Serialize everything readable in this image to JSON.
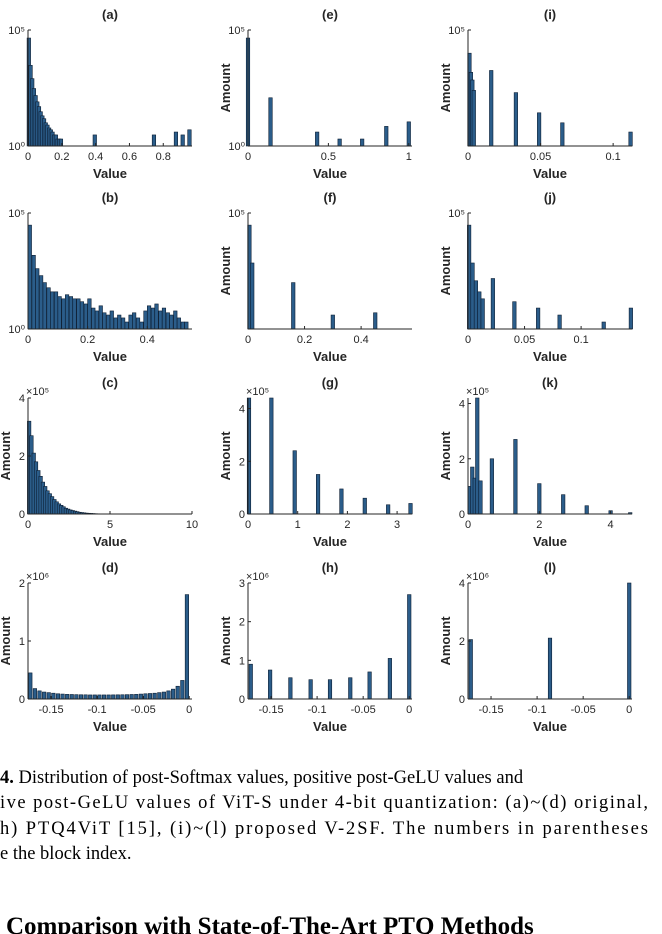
{
  "chart_data": [
    {
      "type": "bar",
      "title": "(a)",
      "xlabel": "Value",
      "color": "#2b5d8a",
      "log": true,
      "x": [
        0.005,
        0.015,
        0.025,
        0.035,
        0.045,
        0.055,
        0.065,
        0.075,
        0.085,
        0.095,
        0.105,
        0.115,
        0.125,
        0.135,
        0.145,
        0.155,
        0.165,
        0.175,
        0.185,
        0.195,
        0.395,
        0.745,
        0.875,
        0.915,
        0.955
      ],
      "values": [
        45000,
        3000,
        800,
        300,
        150,
        80,
        50,
        30,
        20,
        15,
        10,
        8,
        6,
        5,
        4,
        3,
        3,
        2,
        2,
        2,
        3,
        3,
        4,
        3,
        5
      ],
      "xlim": [
        0,
        0.97
      ],
      "xticks": [
        0,
        0.2,
        0.4,
        0.6,
        0.8
      ],
      "ylim": [
        1,
        100000
      ],
      "yticks": [
        {
          "value": 1,
          "label": "10⁰"
        },
        {
          "value": 100000,
          "label": "10⁵"
        }
      ]
    },
    {
      "type": "bar",
      "title": "(e)",
      "xlabel": "Value",
      "ylabel": "Amount",
      "color": "#2b5d8a",
      "log": true,
      "x": [
        0,
        0.14,
        0.43,
        0.57,
        0.71,
        0.86,
        1.0
      ],
      "values": [
        45000,
        120,
        4,
        2,
        2,
        7,
        11
      ],
      "xlim": [
        0,
        1.02
      ],
      "xticks": [
        0,
        0.5,
        1
      ],
      "ylim": [
        1,
        100000
      ],
      "yticks": [
        {
          "value": 1,
          "label": "10⁰"
        },
        {
          "value": 100000,
          "label": "10⁵"
        }
      ]
    },
    {
      "type": "bar",
      "title": "(i)",
      "xlabel": "Value",
      "ylabel": "Amount",
      "color": "#2b5d8a",
      "log": true,
      "x": [
        0.001,
        0.002,
        0.003,
        0.004,
        0.016,
        0.033,
        0.049,
        0.065,
        0.112
      ],
      "values": [
        10000,
        1500,
        700,
        250,
        1800,
        200,
        27,
        10,
        4
      ],
      "xlim": [
        0,
        0.113
      ],
      "xticks": [
        0,
        0.05,
        0.1
      ],
      "ylim": [
        1,
        100000
      ],
      "yticks": [
        {
          "value": 100000,
          "label": "10⁵"
        }
      ]
    },
    {
      "type": "bar",
      "title": "(b)",
      "xlabel": "Value",
      "color": "#2b5d8a",
      "log": true,
      "x": [
        0.006,
        0.019,
        0.031,
        0.044,
        0.056,
        0.069,
        0.081,
        0.094,
        0.106,
        0.119,
        0.131,
        0.144,
        0.156,
        0.169,
        0.181,
        0.194,
        0.206,
        0.219,
        0.231,
        0.244,
        0.256,
        0.269,
        0.281,
        0.294,
        0.306,
        0.319,
        0.331,
        0.344,
        0.356,
        0.369,
        0.381,
        0.394,
        0.406,
        0.419,
        0.431,
        0.444,
        0.456,
        0.469,
        0.481,
        0.494,
        0.506,
        0.519,
        0.531
      ],
      "values": [
        30000,
        1500,
        400,
        200,
        100,
        60,
        40,
        40,
        25,
        20,
        30,
        25,
        20,
        20,
        15,
        12,
        20,
        8,
        6,
        10,
        5,
        4,
        6,
        3,
        4,
        3,
        2,
        4,
        5,
        3,
        2,
        6,
        10,
        8,
        12,
        6,
        8,
        5,
        4,
        6,
        3,
        2,
        2
      ],
      "xlim": [
        0,
        0.55
      ],
      "xticks": [
        0,
        0.2,
        0.4
      ],
      "ylim": [
        1,
        100000
      ],
      "yticks": [
        {
          "value": 1,
          "label": "10⁰"
        },
        {
          "value": 100000,
          "label": "10⁵"
        }
      ]
    },
    {
      "type": "bar",
      "title": "(f)",
      "xlabel": "Value",
      "ylabel": "Amount",
      "color": "#2b5d8a",
      "log": true,
      "x": [
        0.005,
        0.015,
        0.16,
        0.3,
        0.45
      ],
      "values": [
        30000,
        700,
        100,
        4,
        5
      ],
      "xlim": [
        0,
        0.58
      ],
      "xticks": [
        0,
        0.2,
        0.4
      ],
      "ylim": [
        1,
        100000
      ],
      "yticks": [
        {
          "value": 100000,
          "label": "10⁵"
        }
      ]
    },
    {
      "type": "bar",
      "title": "(j)",
      "xlabel": "Value",
      "ylabel": "Amount",
      "color": "#2b5d8a",
      "log": true,
      "x": [
        0.001,
        0.004,
        0.007,
        0.01,
        0.013,
        0.022,
        0.041,
        0.062,
        0.081,
        0.12,
        0.144
      ],
      "values": [
        30000,
        700,
        120,
        40,
        20,
        150,
        15,
        8,
        4,
        2,
        8
      ],
      "xlim": [
        0,
        0.145
      ],
      "xticks": [
        0,
        0.05,
        0.1
      ],
      "ylim": [
        1,
        100000
      ],
      "yticks": [
        {
          "value": 100000,
          "label": "10⁵"
        }
      ]
    },
    {
      "type": "bar",
      "title": "(c)",
      "xlabel": "Value",
      "ylabel": "Amount",
      "y_multiplier": "×10⁵",
      "color": "#2b5d8a",
      "log": false,
      "x": [
        0.07,
        0.21,
        0.35,
        0.49,
        0.63,
        0.77,
        0.91,
        1.05,
        1.19,
        1.33,
        1.47,
        1.61,
        1.75,
        1.89,
        2.03,
        2.17,
        2.31,
        2.45,
        2.59,
        2.73,
        2.87,
        3.01,
        3.15,
        3.29,
        3.43,
        3.57,
        3.71,
        3.85,
        3.99,
        4.13,
        4.27,
        4.41
      ],
      "values": [
        3.2,
        2.7,
        2.1,
        1.8,
        1.5,
        1.3,
        1.1,
        0.95,
        0.8,
        0.7,
        0.6,
        0.5,
        0.42,
        0.35,
        0.3,
        0.25,
        0.2,
        0.17,
        0.14,
        0.12,
        0.1,
        0.08,
        0.06,
        0.05,
        0.04,
        0.03,
        0.025,
        0.02,
        0.015,
        0.01,
        0.008,
        0.005
      ],
      "xlim": [
        0,
        10
      ],
      "xticks": [
        0,
        5,
        10
      ],
      "ylim": [
        0,
        4
      ],
      "yticks": [
        0,
        2,
        4
      ]
    },
    {
      "type": "bar",
      "title": "(g)",
      "xlabel": "Value",
      "ylabel": "Amount",
      "y_multiplier": "×10⁵",
      "color": "#2b5d8a",
      "log": false,
      "x": [
        0.02,
        0.47,
        0.94,
        1.41,
        1.88,
        2.35,
        2.82,
        3.27
      ],
      "values": [
        4.4,
        4.4,
        2.4,
        1.5,
        0.95,
        0.6,
        0.35,
        0.4
      ],
      "xlim": [
        0,
        3.3
      ],
      "xticks": [
        0,
        1,
        2,
        3
      ],
      "ylim": [
        0,
        4.4
      ],
      "yticks": [
        0,
        2,
        4
      ]
    },
    {
      "type": "bar",
      "title": "(k)",
      "xlabel": "Value",
      "ylabel": "Amount",
      "y_multiplier": "×10⁵",
      "color": "#2b5d8a",
      "log": false,
      "x": [
        0.05,
        0.12,
        0.19,
        0.26,
        0.35,
        0.67,
        1.33,
        2.0,
        2.67,
        3.33,
        4.0,
        4.55
      ],
      "values": [
        1.0,
        1.7,
        1.3,
        4.2,
        1.2,
        2.0,
        2.7,
        1.1,
        0.7,
        0.3,
        0.12,
        0.05
      ],
      "xlim": [
        0,
        4.6
      ],
      "xticks": [
        0,
        2,
        4
      ],
      "ylim": [
        0,
        4.2
      ],
      "yticks": [
        0,
        2,
        4
      ]
    },
    {
      "type": "bar",
      "title": "(d)",
      "xlabel": "Value",
      "ylabel": "Amount",
      "y_multiplier": "×10⁶",
      "color": "#2b5d8a",
      "log": false,
      "x": [
        -0.1725,
        -0.1675,
        -0.1625,
        -0.1575,
        -0.1525,
        -0.1475,
        -0.1425,
        -0.1375,
        -0.1325,
        -0.1275,
        -0.1225,
        -0.1175,
        -0.1125,
        -0.1075,
        -0.1025,
        -0.0975,
        -0.0925,
        -0.0875,
        -0.0825,
        -0.0775,
        -0.0725,
        -0.0675,
        -0.0625,
        -0.0575,
        -0.0525,
        -0.0475,
        -0.0425,
        -0.0375,
        -0.0325,
        -0.0275,
        -0.0225,
        -0.0175,
        -0.0125,
        -0.0075,
        -0.0025
      ],
      "values": [
        0.45,
        0.18,
        0.14,
        0.12,
        0.11,
        0.1,
        0.09,
        0.085,
        0.08,
        0.078,
        0.075,
        0.073,
        0.072,
        0.07,
        0.07,
        0.07,
        0.07,
        0.07,
        0.071,
        0.072,
        0.073,
        0.075,
        0.078,
        0.08,
        0.085,
        0.09,
        0.095,
        0.1,
        0.11,
        0.12,
        0.14,
        0.17,
        0.22,
        0.32,
        1.8
      ],
      "xlim": [
        -0.175,
        0.003
      ],
      "xticks": [
        -0.15,
        -0.1,
        -0.05,
        0
      ],
      "ylim": [
        0,
        2
      ],
      "yticks": [
        0,
        1,
        2
      ]
    },
    {
      "type": "bar",
      "title": "(h)",
      "xlabel": "Value",
      "ylabel": "Amount",
      "y_multiplier": "×10⁶",
      "color": "#2b5d8a",
      "log": false,
      "x": [
        -0.172,
        -0.151,
        -0.129,
        -0.107,
        -0.086,
        -0.064,
        -0.043,
        -0.021,
        0
      ],
      "values": [
        0.9,
        0.75,
        0.55,
        0.5,
        0.5,
        0.55,
        0.7,
        1.05,
        2.7
      ],
      "xlim": [
        -0.175,
        0.003
      ],
      "xticks": [
        -0.15,
        -0.1,
        -0.05,
        0
      ],
      "ylim": [
        0,
        3
      ],
      "yticks": [
        0,
        1,
        2,
        3
      ]
    },
    {
      "type": "bar",
      "title": "(l)",
      "xlabel": "Value",
      "ylabel": "Amount",
      "y_multiplier": "×10⁶",
      "color": "#2b5d8a",
      "log": false,
      "x": [
        -0.172,
        -0.086,
        0
      ],
      "values": [
        2.05,
        2.1,
        4.0
      ],
      "xlim": [
        -0.175,
        0.003
      ],
      "xticks": [
        -0.15,
        -0.1,
        -0.05,
        0
      ],
      "ylim": [
        0,
        4
      ],
      "yticks": [
        0,
        2,
        4
      ]
    }
  ],
  "caption": {
    "label": "4.",
    "lines": [
      " Distribution of post-Softmax values, positive post-GeLU values and",
      "ive post-GeLU values of ViT-S under 4-bit quantization: (a)~(d) original,",
      "h) PTQ4ViT [15], (i)~(l) proposed V-2SF. The numbers in parentheses",
      "e the block index."
    ]
  },
  "heading": "Comparison with State-of-The-Art PTQ Methods"
}
